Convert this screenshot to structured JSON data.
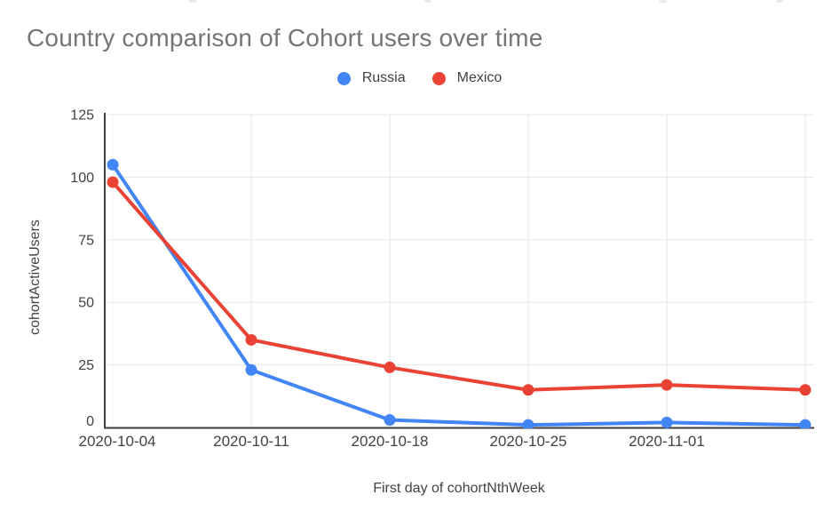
{
  "title": "Country comparison of Cohort users over time",
  "chart_data": {
    "type": "line",
    "title": "Country comparison of Cohort users over time",
    "x_axis_title": "First day of cohortNthWeek",
    "y_axis_title": "cohortActiveUsers",
    "categories": [
      "2020-10-04",
      "2020-10-11",
      "2020-10-18",
      "2020-10-25",
      "2020-11-01",
      ""
    ],
    "series": [
      {
        "name": "Russia",
        "color": "#4285F4",
        "values": [
          105,
          23,
          3,
          1,
          2,
          1
        ]
      },
      {
        "name": "Mexico",
        "color": "#EA4335",
        "values": [
          98,
          35,
          24,
          15,
          17,
          15
        ]
      }
    ],
    "y_ticks": [
      0,
      25,
      50,
      75,
      100,
      125
    ],
    "ylim": [
      0,
      125
    ],
    "grid": true,
    "legend_position": "top",
    "marker": "circle"
  },
  "colors": {
    "title_text": "#757575",
    "axis_line": "#3d3d3d",
    "tick_text": "#424242",
    "gridline": "#e6e6e6",
    "first_gridline": "#f1f1f1",
    "background": "#ffffff"
  }
}
